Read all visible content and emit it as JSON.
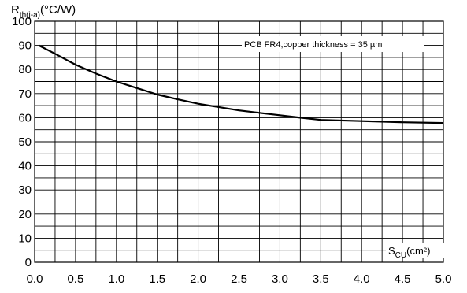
{
  "chart_data": {
    "type": "line",
    "ylabel_main": "R",
    "ylabel_sub": "th(j-a)",
    "ylabel_unit": "(°C/W)",
    "xlabel_main": "S",
    "xlabel_sub": "CU",
    "xlabel_unit": "(cm²)",
    "annotation": "PCB FR4,copper thickness = 35 µm",
    "xlim": [
      0,
      5
    ],
    "ylim": [
      0,
      100
    ],
    "x_ticks": [
      "0.0",
      "0.5",
      "1.0",
      "1.5",
      "2.0",
      "2.5",
      "3.0",
      "3.5",
      "4.0",
      "4.5",
      "5.0"
    ],
    "y_ticks": [
      "0",
      "10",
      "20",
      "30",
      "40",
      "50",
      "60",
      "70",
      "80",
      "90",
      "100"
    ],
    "grid": true,
    "x": [
      0.05,
      0.25,
      0.5,
      0.75,
      1.0,
      1.25,
      1.5,
      1.75,
      2.0,
      2.25,
      2.5,
      2.75,
      3.0,
      3.25,
      3.5,
      4.0,
      4.5,
      5.0
    ],
    "y": [
      90,
      86.5,
      82,
      78.3,
      75,
      72.3,
      69.6,
      67.6,
      65.8,
      64.4,
      63,
      62,
      61,
      60,
      59.1,
      58.6,
      58.1,
      57.8
    ]
  }
}
